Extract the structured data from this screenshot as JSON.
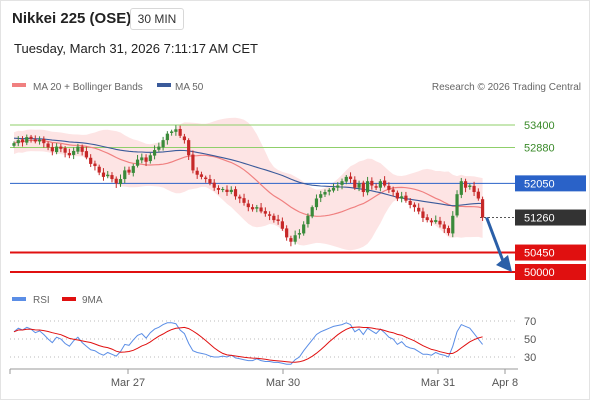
{
  "header": {
    "title": "Nikkei 225 (OSE)",
    "timeframe": "30 MIN",
    "timestamp": "Tuesday, March 31, 2026 7:11:17 AM CET"
  },
  "legend": {
    "ma20_label": "MA 20 + Bollinger Bands",
    "ma50_label": "MA 50",
    "credit": "Research © 2026 Trading Central",
    "rsi_label": "RSI",
    "rsi_ma_label": "9MA"
  },
  "colors": {
    "bull_candle": "#3a8a3a",
    "bear_candle": "#c62828",
    "ma20": "#f08080",
    "bollinger_fill": "#fde4e4",
    "ma50": "#3a5a9a",
    "resistance": "#8fcf6a",
    "pivot": "#2a62c8",
    "support": "#e01010",
    "current": "#333333",
    "rsi": "#5b8ee6",
    "rsi_ma": "#e01010"
  },
  "chart_data": {
    "type": "candlestick",
    "price_levels": [
      {
        "label": "53400",
        "value": 53400,
        "kind": "resistance"
      },
      {
        "label": "52880",
        "value": 52880,
        "kind": "resistance"
      },
      {
        "label": "52050",
        "value": 52050,
        "kind": "pivot"
      },
      {
        "label": "51260",
        "value": 51260,
        "kind": "current"
      },
      {
        "label": "50450",
        "value": 50450,
        "kind": "support"
      },
      {
        "label": "50000",
        "value": 50000,
        "kind": "support"
      }
    ],
    "forecast_arrow": {
      "from": 51260,
      "to": 50000
    },
    "x_ticks": [
      "Mar 27",
      "Mar 30",
      "Mar 31",
      "Apr 8"
    ],
    "rsi_ticks": [
      70,
      50,
      30
    ],
    "closes": [
      52980,
      53050,
      53000,
      53120,
      53080,
      53020,
      53060,
      52980,
      52880,
      52790,
      52900,
      52850,
      52760,
      52700,
      52800,
      52900,
      52780,
      52650,
      52500,
      52450,
      52300,
      52200,
      52250,
      52150,
      52050,
      52150,
      52350,
      52300,
      52450,
      52600,
      52650,
      52550,
      52700,
      52820,
      52900,
      53050,
      53200,
      53250,
      53300,
      53150,
      53050,
      52700,
      52350,
      52250,
      52200,
      52150,
      52050,
      51950,
      51900,
      51920,
      51850,
      51900,
      51750,
      51700,
      51600,
      51500,
      51450,
      51500,
      51400,
      51350,
      51300,
      51200,
      51180,
      51000,
      50800,
      50700,
      50850,
      50900,
      51100,
      51300,
      51500,
      51700,
      51800,
      51850,
      51900,
      51950,
      52000,
      52100,
      52200,
      52150,
      51950,
      52050,
      51850,
      52100,
      52000,
      51950,
      52100,
      52000,
      51900,
      51850,
      51700,
      51750,
      51650,
      51550,
      51500,
      51400,
      51250,
      51200,
      51150,
      51200,
      51100,
      51000,
      50900,
      51300,
      51800,
      52100,
      51950,
      52000,
      51850,
      51700,
      51260
    ],
    "rsi": [
      58,
      62,
      60,
      63,
      61,
      57,
      59,
      55,
      50,
      46,
      52,
      50,
      45,
      42,
      48,
      52,
      46,
      42,
      38,
      37,
      34,
      32,
      35,
      33,
      31,
      36,
      44,
      43,
      49,
      54,
      56,
      51,
      57,
      61,
      63,
      66,
      68,
      68,
      67,
      60,
      56,
      45,
      37,
      35,
      34,
      33,
      31,
      30,
      30,
      31,
      30,
      32,
      29,
      28,
      27,
      26,
      26,
      28,
      26,
      25,
      25,
      24,
      24,
      23,
      22,
      22,
      27,
      30,
      37,
      43,
      49,
      55,
      58,
      60,
      62,
      64,
      65,
      66,
      68,
      66,
      58,
      61,
      55,
      62,
      59,
      56,
      61,
      57,
      52,
      50,
      44,
      47,
      42,
      40,
      39,
      36,
      33,
      33,
      32,
      35,
      33,
      32,
      30,
      42,
      58,
      66,
      64,
      62,
      56,
      50,
      44
    ]
  }
}
